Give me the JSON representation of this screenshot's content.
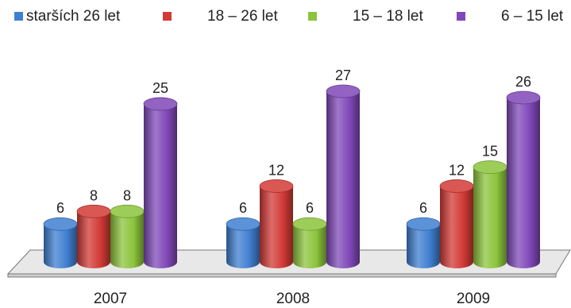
{
  "chart_data": {
    "type": "bar",
    "style": "3d-cylinder",
    "categories": [
      "2007",
      "2008",
      "2009"
    ],
    "series": [
      {
        "name": "starších 26 let",
        "color": "#3f7fd0",
        "values": [
          6,
          6,
          6
        ]
      },
      {
        "name": "18 – 26 let",
        "color": "#d23a36",
        "values": [
          8,
          12,
          12
        ]
      },
      {
        "name": "15 – 18 let",
        "color": "#8cc43c",
        "values": [
          8,
          6,
          15
        ]
      },
      {
        "name": "6 – 15 let",
        "color": "#8048b8",
        "values": [
          25,
          27,
          26
        ]
      }
    ],
    "ylim": [
      0,
      27
    ],
    "legend_position": "top",
    "grid": false,
    "data_labels": true
  }
}
